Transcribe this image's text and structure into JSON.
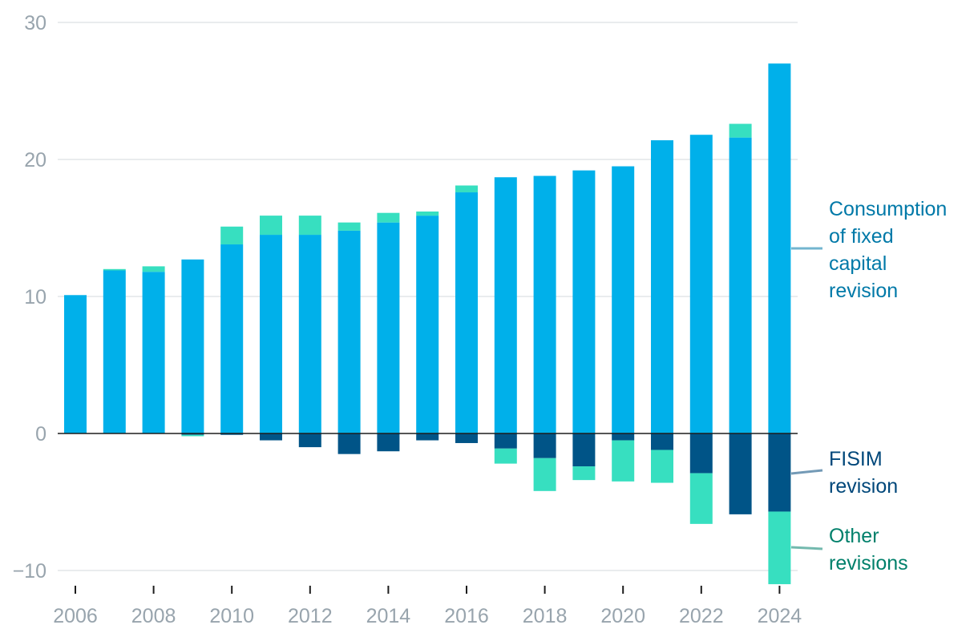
{
  "chart_data": {
    "type": "bar",
    "stacked": true,
    "title": "",
    "xlabel": "",
    "ylabel": "",
    "ylim": [
      -11,
      30
    ],
    "yticks": [
      -10,
      0,
      10,
      20,
      30
    ],
    "ytick_labels": [
      "−10",
      "0",
      "10",
      "20",
      "30"
    ],
    "categories": [
      "2006",
      "2007",
      "2008",
      "2009",
      "2010",
      "2011",
      "2012",
      "2013",
      "2014",
      "2015",
      "2016",
      "2017",
      "2018",
      "2019",
      "2020",
      "2021",
      "2022",
      "2023",
      "2024"
    ],
    "xtick_labels": [
      "2006",
      "2008",
      "2010",
      "2012",
      "2014",
      "2016",
      "2018",
      "2020",
      "2022",
      "2024"
    ],
    "grid": true,
    "series": [
      {
        "name": "Consumption of fixed capital revision",
        "key": "cfc",
        "color": "#00b0ea",
        "label_color": "#0079a8",
        "values": [
          10.1,
          11.9,
          11.8,
          12.7,
          13.8,
          14.5,
          14.5,
          14.8,
          15.4,
          15.9,
          17.6,
          18.7,
          18.8,
          19.2,
          19.5,
          21.4,
          21.8,
          21.6,
          27.0
        ]
      },
      {
        "name": "FISIM revision",
        "key": "fisim",
        "color": "#005487",
        "label_color": "#00477a",
        "values": [
          0,
          0,
          0,
          -0.1,
          -0.1,
          -0.5,
          -1.0,
          -1.5,
          -1.3,
          -0.5,
          -0.7,
          -1.1,
          -1.8,
          -2.4,
          -0.5,
          -1.2,
          -2.9,
          -5.9,
          -5.7
        ]
      },
      {
        "name": "Other revisions",
        "key": "other",
        "color": "#37dfc0",
        "label_color": "#00806b",
        "values": [
          0,
          0.1,
          0.4,
          -0.1,
          1.3,
          1.4,
          1.4,
          0.6,
          0.7,
          0.3,
          0.5,
          -1.1,
          -2.4,
          -1.0,
          -3.0,
          -2.4,
          -3.7,
          1.0,
          -5.3
        ]
      }
    ],
    "legend_labels": {
      "cfc": [
        "Consumption",
        "of fixed",
        "capital",
        "revision"
      ],
      "fisim": [
        "FISIM",
        "revision"
      ],
      "other": [
        "Other",
        "revisions"
      ]
    },
    "legend_position": "right"
  }
}
